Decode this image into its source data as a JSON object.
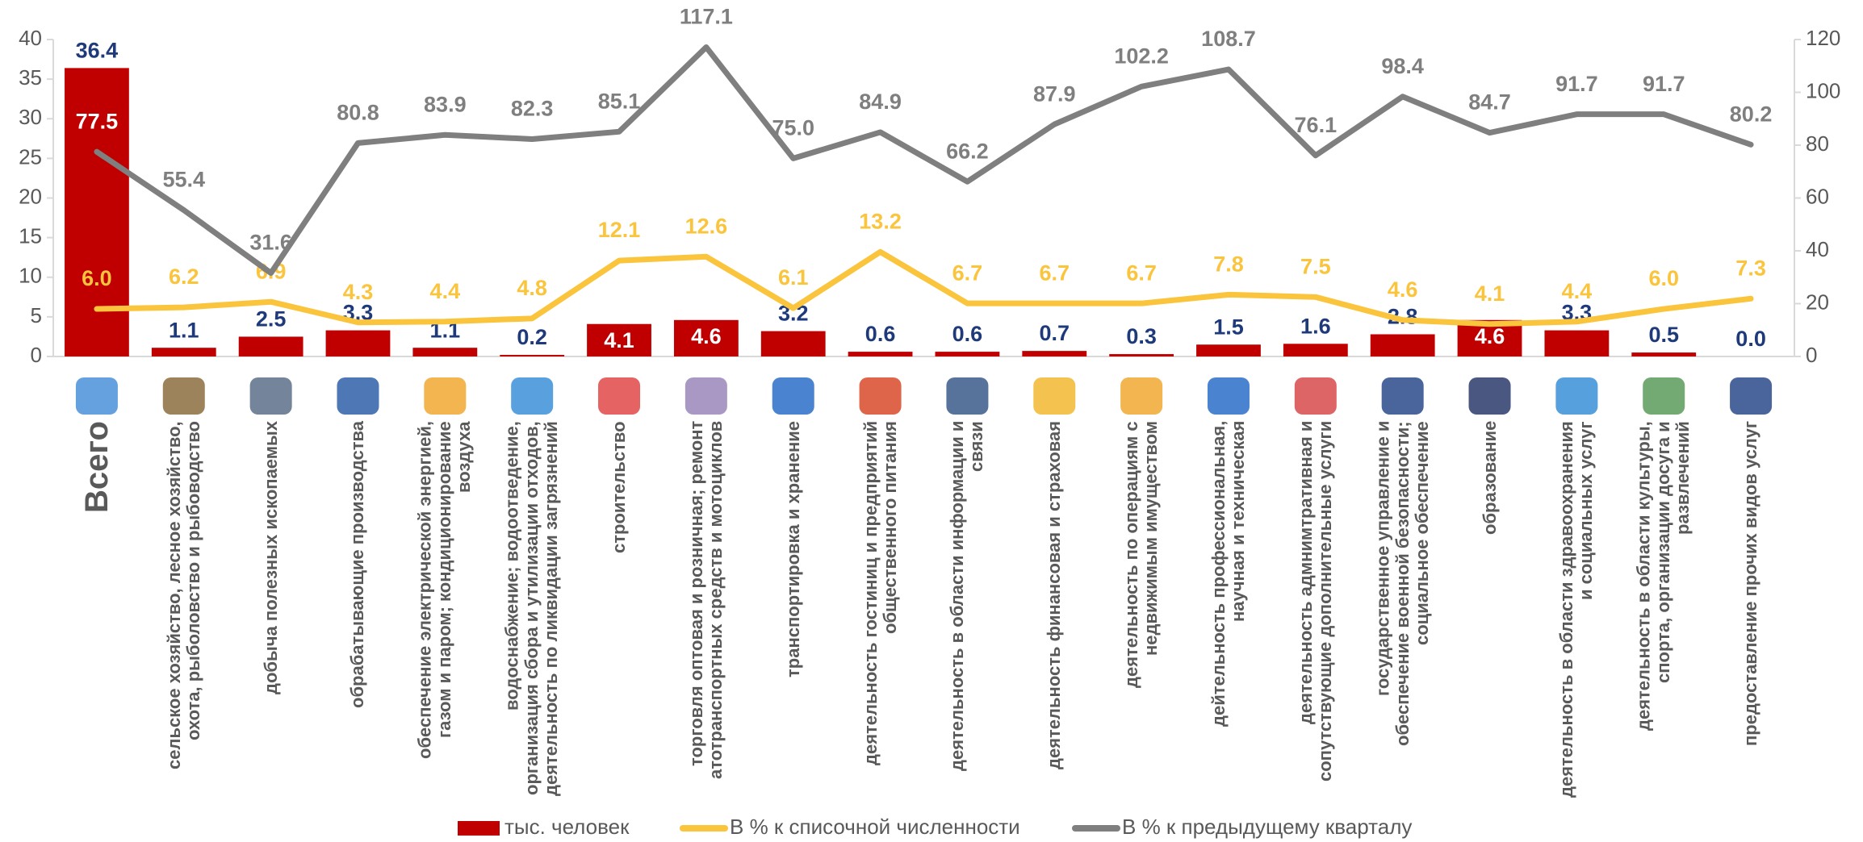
{
  "chart_data": {
    "type": "bar",
    "categories": [
      "Всего",
      "сельское хозяйство, лесное хозяйство, охота, рыболовство и рыбоводство",
      "добыча полезных ископаемых",
      "обрабатывающие производства",
      "обеспечение электрической энергией, газом и паром; кондиционирование воздуха",
      "водоснабжение; водоотведение, организация сбора и утилизации отходов, деятельность по ликвидации загрязнений",
      "строительство",
      "торговля оптовая и розничная; ремонт атотранспортных средств и мотоциклов",
      "транспортировка и хранение",
      "деятельность гостиниц и предприятий общественного питания",
      "деятельность  в области информации и связи",
      "деятельность финансовая и страховая",
      "деятельность по операциям с недвижимым имуществом",
      "дейтельность профессиональная, научная и техническая",
      "деятельность адмнимтративная и сопутствующие дополнительные услуги",
      "государственное управление и обеспечение военной безопасности; социальное обеспечение",
      "образование",
      "деятельность в области здравоохранения и социальных услуг",
      "деятельность в области культуры, спорта, организации досуга и развлечений",
      "предоставление прочих видов услуг"
    ],
    "series": [
      {
        "name": "тыс. человек",
        "type": "bar",
        "color": "#c00000",
        "axis": "y",
        "values": [
          36.4,
          1.1,
          2.5,
          3.3,
          1.1,
          0.2,
          4.1,
          4.6,
          3.2,
          0.6,
          0.6,
          0.7,
          0.3,
          1.5,
          1.6,
          2.8,
          4.6,
          3.3,
          0.5,
          0.0
        ],
        "value_labels": [
          "36.4",
          "1.1",
          "2.5",
          "3.3",
          "1.1",
          "0.2",
          "4.1",
          "4.6",
          "3.2",
          "0.6",
          "0.6",
          "0.7",
          "0.3",
          "1.5",
          "1.6",
          "2.8",
          "4.6",
          "3.3",
          "0.5",
          "0.0"
        ]
      },
      {
        "name": "В % к списочной численности",
        "type": "line",
        "color": "#fac43c",
        "axis": "y",
        "values": [
          6.0,
          6.2,
          6.9,
          4.3,
          4.4,
          4.8,
          12.1,
          12.6,
          6.1,
          13.2,
          6.7,
          6.7,
          6.7,
          7.8,
          7.5,
          4.6,
          4.1,
          4.4,
          6.0,
          7.3
        ],
        "value_labels": [
          "6.0",
          "6.2",
          "6.9",
          "4.3",
          "4.4",
          "4.8",
          "12.1",
          "12.6",
          "6.1",
          "13.2",
          "6.7",
          "6.7",
          "6.7",
          "7.8",
          "7.5",
          "4.6",
          "4.1",
          "4.4",
          "6.0",
          "7.3"
        ]
      },
      {
        "name": "В % к предыдущему кварталу",
        "type": "line",
        "color": "#7f7f7f",
        "axis": "y2",
        "values": [
          77.5,
          55.4,
          31.6,
          80.8,
          83.9,
          82.3,
          85.1,
          117.1,
          75.0,
          84.9,
          66.2,
          87.9,
          102.2,
          108.7,
          76.1,
          98.4,
          84.7,
          91.7,
          91.7,
          80.2
        ],
        "value_labels": [
          "77.5",
          "55.4",
          "31.6",
          "80.8",
          "83.9",
          "82.3",
          "85.1",
          "117.1",
          "75.0",
          "84.9",
          "66.2",
          "87.9",
          "102.2",
          "108.7",
          "76.1",
          "98.4",
          "84.7",
          "91.7",
          "91.7",
          "80.2"
        ]
      }
    ],
    "ylim": [
      0,
      40
    ],
    "yticks": [
      0,
      5,
      10,
      15,
      20,
      25,
      30,
      35,
      40
    ],
    "y2lim": [
      0,
      120
    ],
    "y2ticks": [
      0,
      20,
      40,
      60,
      80,
      100,
      120
    ],
    "legend": "bottom"
  }
}
